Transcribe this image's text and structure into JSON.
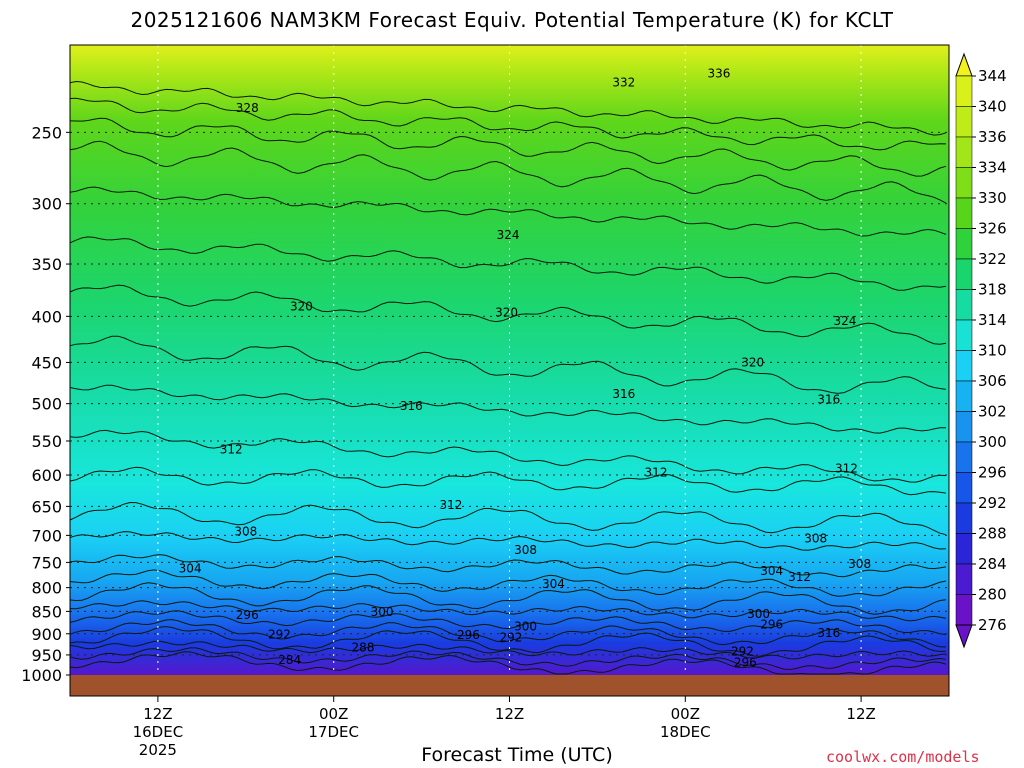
{
  "chart_data": {
    "type": "contour",
    "title": "2025121606 NAM3KM Forecast Equiv. Potential Temperature (K) for KCLT",
    "xlabel": "Forecast Time (UTC)",
    "ylabel": "",
    "y_axis": {
      "reversed": true,
      "ticks": [
        250,
        300,
        350,
        400,
        450,
        500,
        550,
        600,
        650,
        700,
        750,
        800,
        850,
        900,
        950,
        1000
      ],
      "range": [
        1000,
        200
      ]
    },
    "x_axis": {
      "range": [
        "2025-12-16T06Z",
        "2025-12-18T18Z"
      ],
      "ticks": [
        {
          "t": 6,
          "line1": "12Z",
          "line2": "16DEC",
          "line3": "2025"
        },
        {
          "t": 18,
          "line1": "00Z",
          "line2": "17DEC",
          "line3": ""
        },
        {
          "t": 30,
          "line1": "12Z",
          "line2": "",
          "line3": ""
        },
        {
          "t": 42,
          "line1": "00Z",
          "line2": "18DEC",
          "line3": ""
        },
        {
          "t": 54,
          "line1": "12Z",
          "line2": "",
          "line3": ""
        }
      ]
    },
    "grid": true,
    "colorbar": {
      "placement": "right",
      "levels": [
        344,
        340,
        336,
        334,
        330,
        326,
        322,
        318,
        314,
        310,
        306,
        302,
        300,
        296,
        292,
        288,
        284,
        280,
        276
      ],
      "colors": [
        "#f3f21c",
        "#d9f01a",
        "#bfec19",
        "#a2e518",
        "#7ede17",
        "#57d51a",
        "#2fd23a",
        "#18d56e",
        "#16dca2",
        "#19e1d3",
        "#1ad0f4",
        "#17b2f2",
        "#1893f0",
        "#1774ed",
        "#1656e8",
        "#1a3be0",
        "#2a25d8",
        "#4a1bd0",
        "#6a12c8"
      ]
    },
    "contour_labels": [
      {
        "text": "336",
        "t": 44.3,
        "p": 215
      },
      {
        "text": "332",
        "t": 37.8,
        "p": 220
      },
      {
        "text": "328",
        "t": 12.1,
        "p": 235
      },
      {
        "text": "324",
        "t": 29.9,
        "p": 325
      },
      {
        "text": "324",
        "t": 52.9,
        "p": 405
      },
      {
        "text": "320",
        "t": 15.8,
        "p": 390
      },
      {
        "text": "320",
        "t": 29.8,
        "p": 396
      },
      {
        "text": "320",
        "t": 46.6,
        "p": 450
      },
      {
        "text": "316",
        "t": 23.3,
        "p": 503
      },
      {
        "text": "316",
        "t": 37.8,
        "p": 488
      },
      {
        "text": "316",
        "t": 51.8,
        "p": 495
      },
      {
        "text": "312",
        "t": 11.0,
        "p": 562
      },
      {
        "text": "312",
        "t": 26.0,
        "p": 648
      },
      {
        "text": "312",
        "t": 40.0,
        "p": 596
      },
      {
        "text": "312",
        "t": 53.0,
        "p": 590
      },
      {
        "text": "308",
        "t": 12.0,
        "p": 693
      },
      {
        "text": "308",
        "t": 31.1,
        "p": 727
      },
      {
        "text": "308",
        "t": 50.9,
        "p": 706
      },
      {
        "text": "308",
        "t": 53.9,
        "p": 753
      },
      {
        "text": "304",
        "t": 8.2,
        "p": 762
      },
      {
        "text": "304",
        "t": 33.0,
        "p": 793
      },
      {
        "text": "304",
        "t": 47.9,
        "p": 767
      },
      {
        "text": "312",
        "t": 49.8,
        "p": 779
      },
      {
        "text": "300",
        "t": 21.3,
        "p": 851
      },
      {
        "text": "300",
        "t": 31.1,
        "p": 884
      },
      {
        "text": "300",
        "t": 47.0,
        "p": 856
      },
      {
        "text": "296",
        "t": 12.1,
        "p": 858
      },
      {
        "text": "296",
        "t": 27.2,
        "p": 903
      },
      {
        "text": "296",
        "t": 47.9,
        "p": 879
      },
      {
        "text": "296",
        "t": 46.1,
        "p": 969
      },
      {
        "text": "316",
        "t": 51.8,
        "p": 898
      },
      {
        "text": "292",
        "t": 14.3,
        "p": 902
      },
      {
        "text": "292",
        "t": 30.1,
        "p": 909
      },
      {
        "text": "292",
        "t": 45.9,
        "p": 942
      },
      {
        "text": "288",
        "t": 20.0,
        "p": 932
      },
      {
        "text": "284",
        "t": 15.0,
        "p": 962
      }
    ]
  },
  "credit": "coolwx.com/models"
}
